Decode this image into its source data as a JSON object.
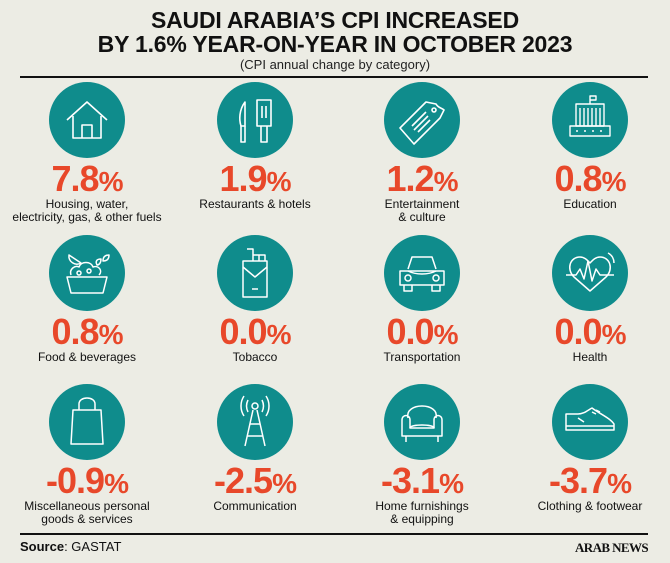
{
  "header": {
    "title_line1": "SAUDI ARABIA’S CPI INCREASED",
    "title_line2": "BY 1.6% YEAR-ON-YEAR IN OCTOBER 2023",
    "subtitle": "(CPI annual change by category)"
  },
  "colors": {
    "circle": "#0f8c8c",
    "value": "#e8482a",
    "background": "#ecece4"
  },
  "categories": [
    {
      "value": "7.8",
      "unit": "%",
      "label_line1": "Housing, water,",
      "label_line2": "electricity, gas, & other fuels",
      "icon": "house-icon"
    },
    {
      "value": "1.9",
      "unit": "%",
      "label_line1": "Restaurants & hotels",
      "label_line2": "",
      "icon": "knife-spatula-icon"
    },
    {
      "value": "1.2",
      "unit": "%",
      "label_line1": "Entertainment",
      "label_line2": "& culture",
      "icon": "ticket-tag-icon"
    },
    {
      "value": "0.8",
      "unit": "%",
      "label_line1": "Education",
      "label_line2": "",
      "icon": "school-building-icon"
    },
    {
      "value": "0.8",
      "unit": "%",
      "label_line1": "Food & beverages",
      "label_line2": "",
      "icon": "food-bowl-icon"
    },
    {
      "value": "0.0",
      "unit": "%",
      "label_line1": "Tobacco",
      "label_line2": "",
      "icon": "cigarette-pack-icon"
    },
    {
      "value": "0.0",
      "unit": "%",
      "label_line1": "Transportation",
      "label_line2": "",
      "icon": "car-icon"
    },
    {
      "value": "0.0",
      "unit": "%",
      "label_line1": "Health",
      "label_line2": "",
      "icon": "heart-pulse-icon"
    },
    {
      "value": "-0.9",
      "unit": "%",
      "label_line1": "Miscellaneous personal",
      "label_line2": "goods & services",
      "icon": "shopping-bag-icon"
    },
    {
      "value": "-2.5",
      "unit": "%",
      "label_line1": "Communication",
      "label_line2": "",
      "icon": "antenna-tower-icon"
    },
    {
      "value": "-3.1",
      "unit": "%",
      "label_line1": "Home furnishings",
      "label_line2": "& equipping",
      "icon": "armchair-icon"
    },
    {
      "value": "-3.7",
      "unit": "%",
      "label_line1": "Clothing & footwear",
      "label_line2": "",
      "icon": "shoe-icon"
    }
  ],
  "footer": {
    "source_label": "Source",
    "source_value": ": GASTAT",
    "brand": "ARAB NEWS"
  }
}
